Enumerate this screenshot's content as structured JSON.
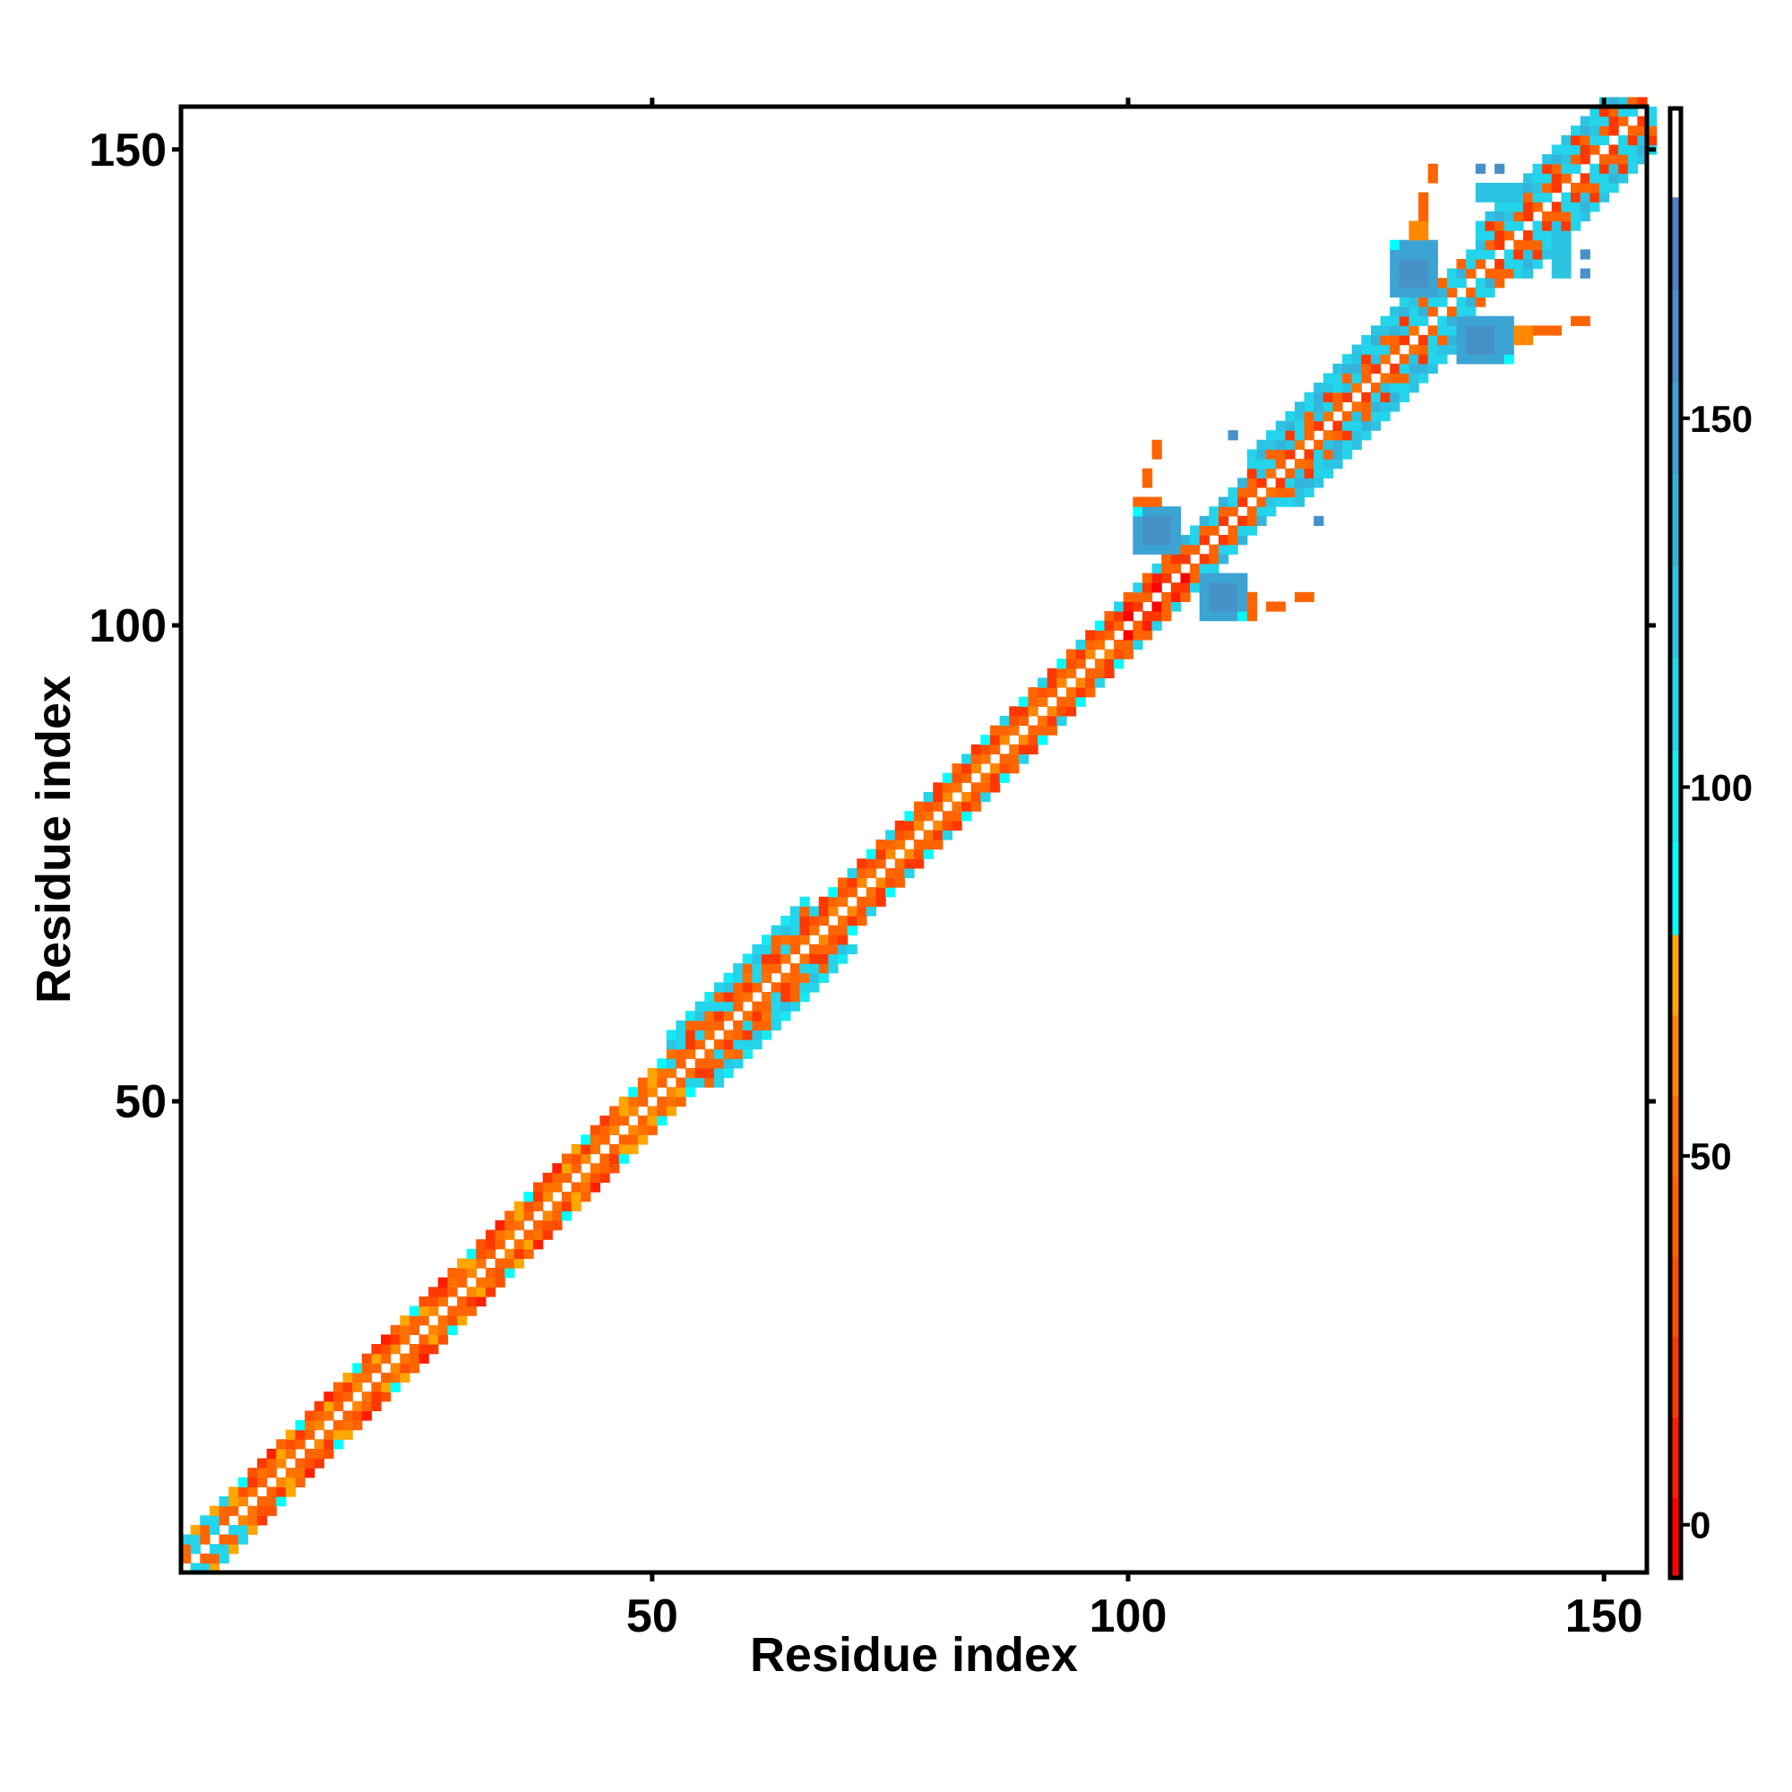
{
  "chart_data": {
    "type": "heatmap",
    "title": "",
    "xlabel": "Residue index",
    "ylabel": "Residue index",
    "xlim": [
      0.5,
      154.5
    ],
    "ylim": [
      0.5,
      154.5
    ],
    "xticks": [
      50,
      100,
      150
    ],
    "yticks": [
      50,
      100,
      150
    ],
    "grid": false,
    "symmetric": true,
    "colorbar": {
      "range": [
        -7.2,
        192
      ],
      "ticks": [
        0,
        50,
        100,
        150
      ],
      "bins": [
        {
          "from": -7.2,
          "to": 3.7,
          "color": "#ff0000"
        },
        {
          "from": 3.7,
          "to": 14.6,
          "color": "#ff1e00"
        },
        {
          "from": 14.6,
          "to": 25.5,
          "color": "#ff3800"
        },
        {
          "from": 25.5,
          "to": 36.4,
          "color": "#ff5000"
        },
        {
          "from": 36.4,
          "to": 47.3,
          "color": "#ff6400"
        },
        {
          "from": 47.3,
          "to": 58.2,
          "color": "#ff7200"
        },
        {
          "from": 58.2,
          "to": 69.1,
          "color": "#ff8800"
        },
        {
          "from": 69.1,
          "to": 80,
          "color": "#ffa600"
        },
        {
          "from": 80,
          "to": 92.5,
          "color": "#00ffff"
        },
        {
          "from": 92.5,
          "to": 105,
          "color": "#18e8f4"
        },
        {
          "from": 105,
          "to": 117.5,
          "color": "#24d4ea"
        },
        {
          "from": 117.5,
          "to": 130,
          "color": "#2cc4e2"
        },
        {
          "from": 130,
          "to": 142.5,
          "color": "#34b4da"
        },
        {
          "from": 142.5,
          "to": 155,
          "color": "#3ca4d2"
        },
        {
          "from": 155,
          "to": 167.5,
          "color": "#4692c8"
        },
        {
          "from": 167.5,
          "to": 180,
          "color": "#5082c0"
        },
        {
          "from": 180,
          "to": 192,
          "color": "#ffffff"
        }
      ]
    },
    "band_segments": [
      {
        "from": 1,
        "to": 5,
        "profile": [
          [
            4,
            10
          ],
          [
            10,
            4
          ],
          [
            10,
            7
          ]
        ]
      },
      {
        "from": 6,
        "to": 45,
        "profile": [
          [
            4,
            5,
            6,
            4
          ],
          [
            3,
            4,
            2,
            7,
            5
          ],
          [
            2,
            1,
            4,
            7,
            8,
            3
          ]
        ]
      },
      {
        "from": 46,
        "to": 51,
        "profile": [
          [
            4,
            6
          ],
          [
            4,
            7,
            5
          ],
          [
            8,
            4,
            7
          ]
        ]
      },
      {
        "from": 52,
        "to": 66,
        "profile": [
          [
            4,
            5
          ],
          [
            10,
            4,
            2
          ],
          [
            4,
            2,
            10,
            5
          ],
          [
            10,
            4,
            11
          ],
          [
            10,
            9
          ]
        ]
      },
      {
        "from": 67,
        "to": 98,
        "profile": [
          [
            4,
            6,
            5
          ],
          [
            3,
            2,
            4
          ],
          [
            10,
            4,
            8,
            2
          ]
        ]
      },
      {
        "from": 99,
        "to": 105,
        "profile": [
          [
            2,
            4,
            0
          ],
          [
            1,
            4,
            2
          ],
          [
            10,
            4
          ]
        ]
      },
      {
        "from": 106,
        "to": 112,
        "profile": [
          [
            4,
            2
          ],
          [
            4,
            10
          ],
          [
            10,
            12
          ]
        ]
      },
      {
        "from": 113,
        "to": 130,
        "profile": [
          [
            4,
            2,
            5
          ],
          [
            10,
            4,
            11
          ],
          [
            4,
            10,
            2,
            12
          ],
          [
            10,
            12,
            11
          ],
          [
            10,
            11
          ]
        ]
      },
      {
        "from": 131,
        "to": 136,
        "profile": [
          [
            10,
            4
          ],
          [
            10,
            12
          ],
          [
            4,
            10
          ]
        ]
      },
      {
        "from": 137,
        "to": 154,
        "profile": [
          [
            4,
            10,
            2
          ],
          [
            2,
            10,
            4
          ],
          [
            10,
            4,
            11
          ],
          [
            10,
            2,
            12
          ],
          [
            10,
            11
          ]
        ]
      }
    ],
    "patches": [
      {
        "x": [
          101,
          105
        ],
        "y": [
          108,
          112
        ],
        "bin": 13
      },
      {
        "x": [
          102,
          104
        ],
        "y": [
          109,
          111
        ],
        "bin": 14
      },
      {
        "x": [
          101,
          101
        ],
        "y": [
          112,
          112
        ],
        "bin": 8
      },
      {
        "x": [
          101,
          103
        ],
        "y": [
          113,
          113
        ],
        "bin": 4
      },
      {
        "x": [
          102,
          102
        ],
        "y": [
          115,
          116
        ],
        "bin": 4
      },
      {
        "x": [
          103,
          103
        ],
        "y": [
          118,
          119
        ],
        "bin": 4
      },
      {
        "x": [
          128,
          132
        ],
        "y": [
          135,
          140
        ],
        "bin": 13
      },
      {
        "x": [
          129,
          131
        ],
        "y": [
          136,
          138
        ],
        "bin": 14
      },
      {
        "x": [
          128,
          128
        ],
        "y": [
          140,
          140
        ],
        "bin": 8
      },
      {
        "x": [
          130,
          131
        ],
        "y": [
          141,
          142
        ],
        "bin": 6
      },
      {
        "x": [
          131,
          131
        ],
        "y": [
          143,
          145
        ],
        "bin": 4
      },
      {
        "x": [
          132,
          132
        ],
        "y": [
          147,
          148
        ],
        "bin": 4
      },
      {
        "x": [
          137,
          141
        ],
        "y": [
          145,
          146
        ],
        "bin": 11
      },
      {
        "x": [
          137,
          137
        ],
        "y": [
          148,
          148
        ],
        "bin": 14
      },
      {
        "x": [
          139,
          139
        ],
        "y": [
          148,
          148
        ],
        "bin": 14
      },
      {
        "x": [
          111,
          111
        ],
        "y": [
          120,
          120
        ],
        "bin": 14
      }
    ]
  }
}
